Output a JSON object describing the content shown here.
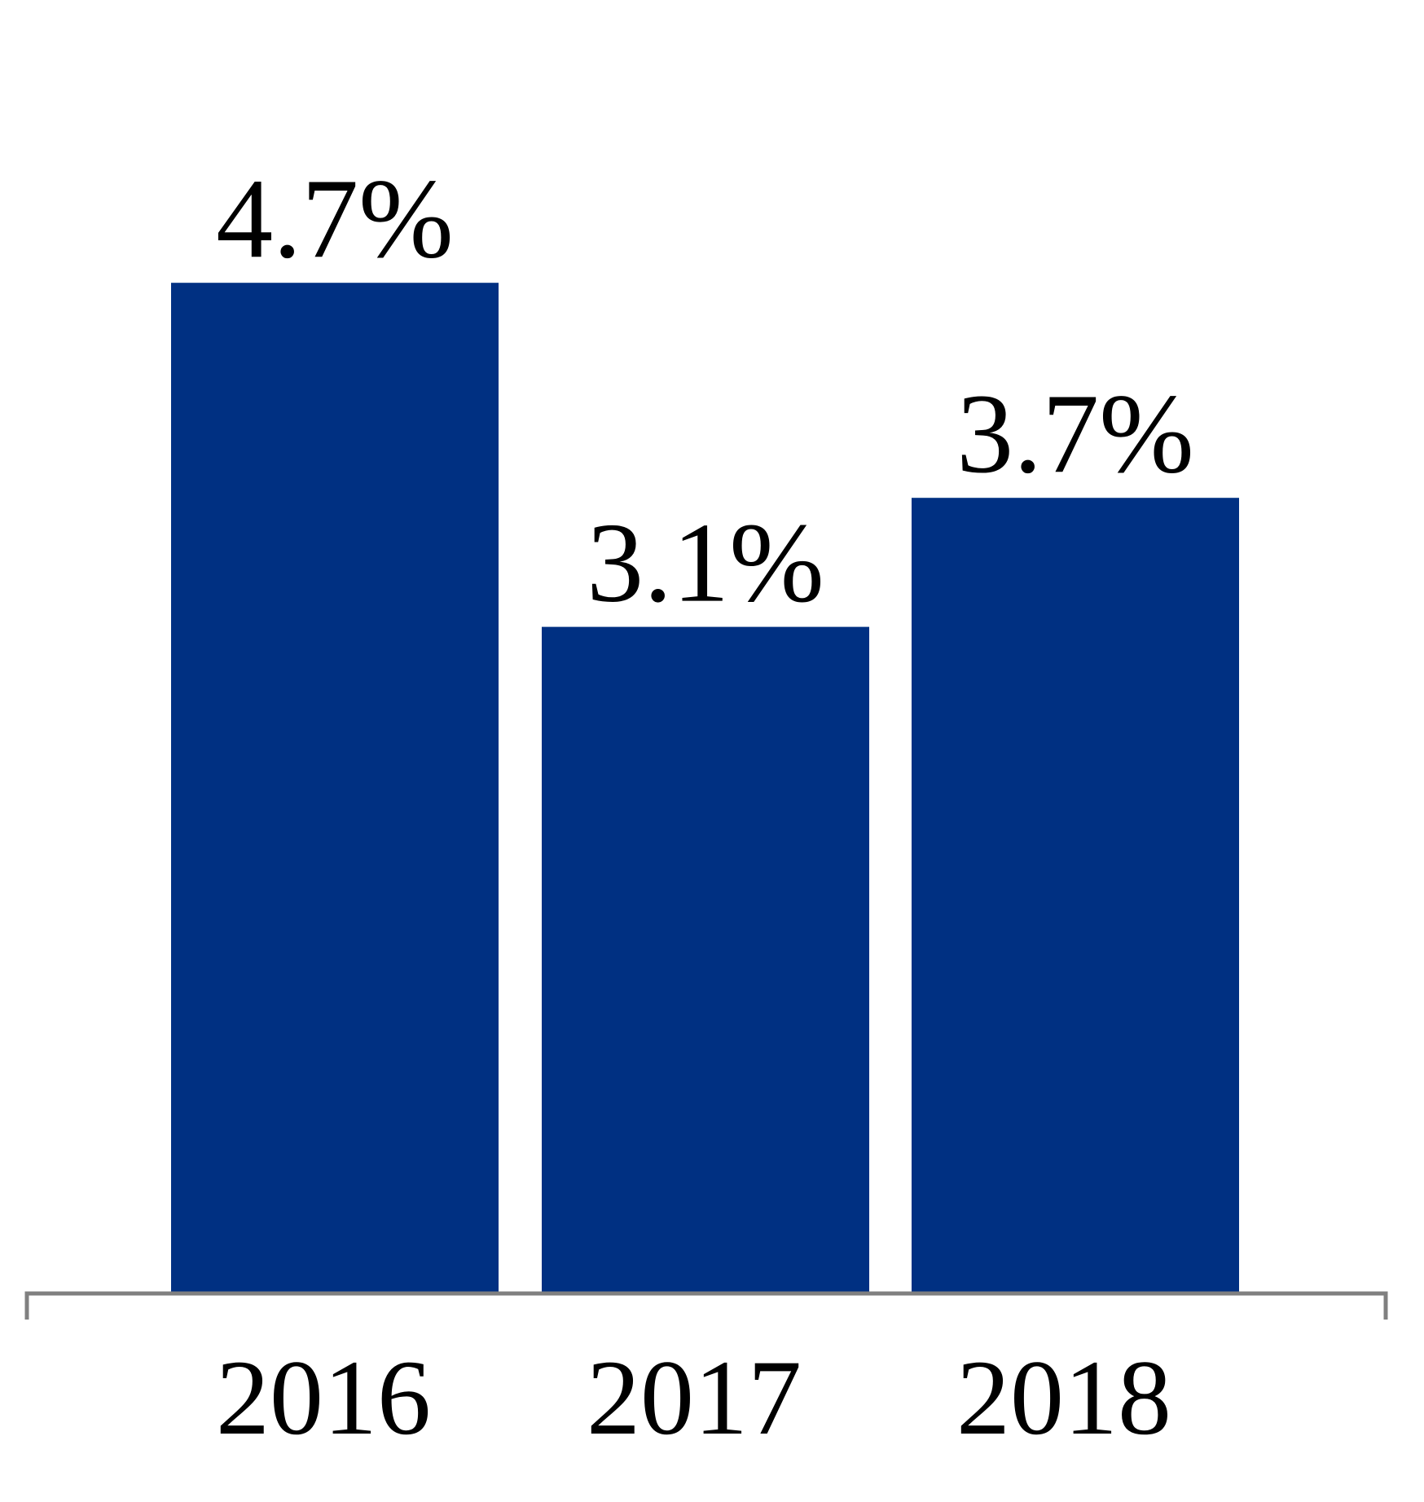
{
  "chart_data": {
    "type": "bar",
    "categories": [
      "2016",
      "2017",
      "2018"
    ],
    "values": [
      4.7,
      3.1,
      3.7
    ],
    "data_labels": [
      "4.7%",
      "3.1%",
      "3.7%"
    ],
    "title": "",
    "xlabel": "",
    "ylabel": "",
    "ylim": [
      0,
      5.5
    ],
    "grid": false,
    "legend": "none",
    "colors": {
      "bar": "#003082",
      "axis": "#808080"
    }
  }
}
